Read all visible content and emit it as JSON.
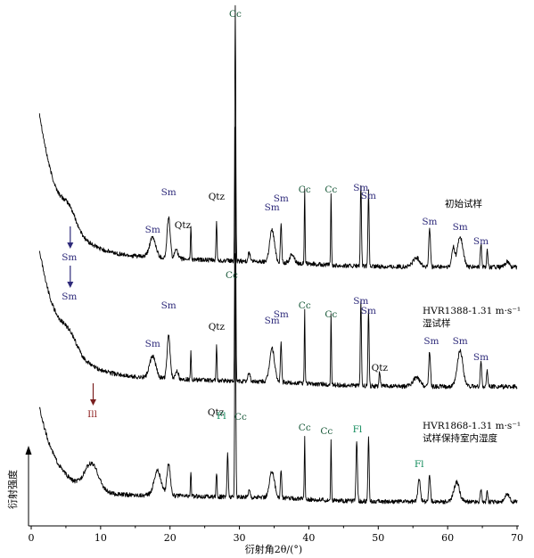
{
  "chart_data": {
    "type": "line",
    "title": "",
    "xlabel": "衍射角2θ/(°)",
    "ylabel": "衍射强度",
    "xlim": [
      0,
      70
    ],
    "xticks": [
      "0",
      "10",
      "20",
      "30",
      "40",
      "50",
      "60",
      "70"
    ],
    "xtick_values": [
      0,
      10,
      20,
      30,
      40,
      50,
      60,
      70
    ],
    "y_numeric_ticks": false,
    "mineral_colors": {
      "Sm": "#2e2a7a",
      "Qtz": "#000000",
      "Cc": "#1a5a3a",
      "Ill": "#8b1a1a",
      "Fl": "#0f8a5a"
    },
    "series": [
      {
        "label_lines": [
          "初始试样"
        ],
        "annotations": [
          {
            "text": "Sm",
            "x": 5.5,
            "mineral": "Sm",
            "arrow": true
          },
          {
            "text": "Sm",
            "x": 17.5,
            "mineral": "Sm"
          },
          {
            "text": "Sm",
            "x": 19.8,
            "mineral": "Sm"
          },
          {
            "text": "Qtz",
            "x": 20.8,
            "mineral": "Qtz"
          },
          {
            "text": "Qtz",
            "x": 26.7,
            "mineral": "Qtz"
          },
          {
            "text": "Cc",
            "x": 29.4,
            "mineral": "Cc"
          },
          {
            "text": "Sm",
            "x": 34.7,
            "mineral": "Sm"
          },
          {
            "text": "Sm",
            "x": 36.0,
            "mineral": "Sm"
          },
          {
            "text": "Cc",
            "x": 39.4,
            "mineral": "Cc"
          },
          {
            "text": "Cc",
            "x": 43.2,
            "mineral": "Cc"
          },
          {
            "text": "Sm",
            "x": 47.5,
            "mineral": "Sm"
          },
          {
            "text": "Sm",
            "x": 48.6,
            "mineral": "Sm"
          },
          {
            "text": "Sm",
            "x": 57.4,
            "mineral": "Sm"
          },
          {
            "text": "Sm",
            "x": 61.8,
            "mineral": "Sm"
          },
          {
            "text": "Sm",
            "x": 64.8,
            "mineral": "Sm"
          }
        ]
      },
      {
        "label_lines": [
          "HVR1388-1.31 m·s⁻¹",
          "湿试样"
        ],
        "annotations": [
          {
            "text": "Sm",
            "x": 5.5,
            "mineral": "Sm",
            "arrow": true
          },
          {
            "text": "Sm",
            "x": 17.5,
            "mineral": "Sm"
          },
          {
            "text": "Sm",
            "x": 19.8,
            "mineral": "Sm"
          },
          {
            "text": "Qtz",
            "x": 26.7,
            "mineral": "Qtz"
          },
          {
            "text": "Cc",
            "x": 29.4,
            "mineral": "Cc"
          },
          {
            "text": "Sm",
            "x": 34.7,
            "mineral": "Sm"
          },
          {
            "text": "Sm",
            "x": 36.0,
            "mineral": "Sm"
          },
          {
            "text": "Cc",
            "x": 39.4,
            "mineral": "Cc"
          },
          {
            "text": "Cc",
            "x": 43.2,
            "mineral": "Cc"
          },
          {
            "text": "Sm",
            "x": 47.5,
            "mineral": "Sm"
          },
          {
            "text": "Sm",
            "x": 48.6,
            "mineral": "Sm"
          },
          {
            "text": "Qtz",
            "x": 50.2,
            "mineral": "Qtz"
          },
          {
            "text": "Sm",
            "x": 57.4,
            "mineral": "Sm"
          },
          {
            "text": "Sm",
            "x": 61.8,
            "mineral": "Sm"
          },
          {
            "text": "Sm",
            "x": 64.8,
            "mineral": "Sm"
          }
        ]
      },
      {
        "label_lines": [
          "HVR1868-1.31 m·s⁻¹",
          "试样保持室内湿度"
        ],
        "annotations": [
          {
            "text": "Ill",
            "x": 8.8,
            "mineral": "Ill",
            "arrow": true
          },
          {
            "text": "Qtz",
            "x": 26.6,
            "mineral": "Qtz"
          },
          {
            "text": "Fl",
            "x": 28.3,
            "mineral": "Fl"
          },
          {
            "text": "Cc",
            "x": 29.4,
            "mineral": "Cc"
          },
          {
            "text": "Cc",
            "x": 39.4,
            "mineral": "Cc"
          },
          {
            "text": "Cc",
            "x": 43.2,
            "mineral": "Cc"
          },
          {
            "text": "Fl",
            "x": 47.0,
            "mineral": "Fl"
          },
          {
            "text": "Fl",
            "x": 55.9,
            "mineral": "Fl"
          }
        ]
      }
    ]
  }
}
